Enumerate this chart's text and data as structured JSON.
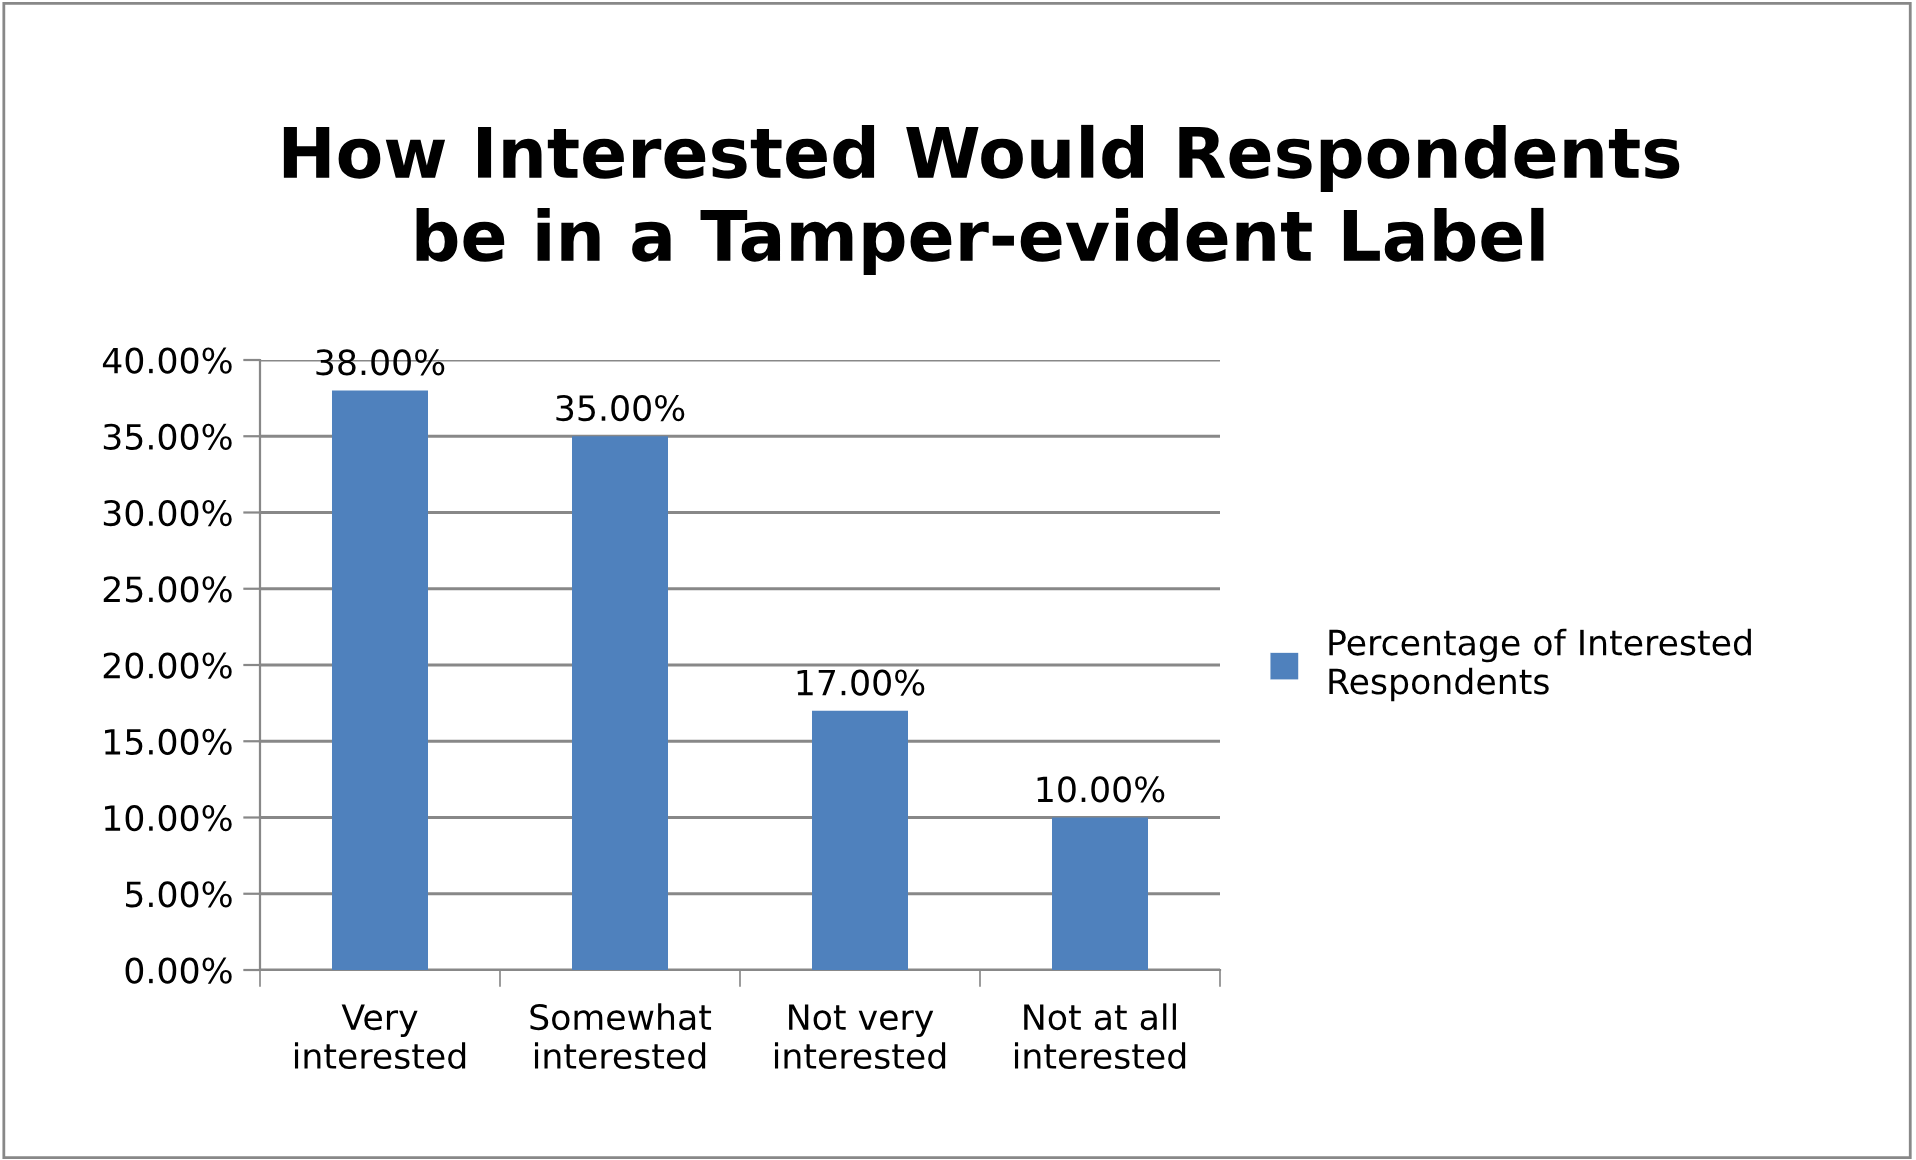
{
  "chart_data": {
    "type": "bar",
    "title": "How Interested Would Respondents\nbe in a Tamper-evident Label",
    "categories": [
      "Very\ninterested",
      "Somewhat\ninterested",
      "Not very\ninterested",
      "Not at all\ninterested"
    ],
    "series": [
      {
        "name": "Percentage of Interested\nRespondents",
        "color": "#4f81bd",
        "values": [
          38,
          35,
          17,
          10
        ],
        "value_labels": [
          "38.00%",
          "35.00%",
          "17.00%",
          "10.00%"
        ]
      }
    ],
    "ylim": [
      0,
      40
    ],
    "yticks": [
      {
        "value": 0,
        "label": "0.00%"
      },
      {
        "value": 5,
        "label": "5.00%"
      },
      {
        "value": 10,
        "label": "10.00%"
      },
      {
        "value": 15,
        "label": "15.00%"
      },
      {
        "value": 20,
        "label": "20.00%"
      },
      {
        "value": 25,
        "label": "25.00%"
      },
      {
        "value": 30,
        "label": "30.00%"
      },
      {
        "value": 35,
        "label": "35.00%"
      },
      {
        "value": 40,
        "label": "40.00%"
      }
    ],
    "grid": "y",
    "legend": "right"
  }
}
